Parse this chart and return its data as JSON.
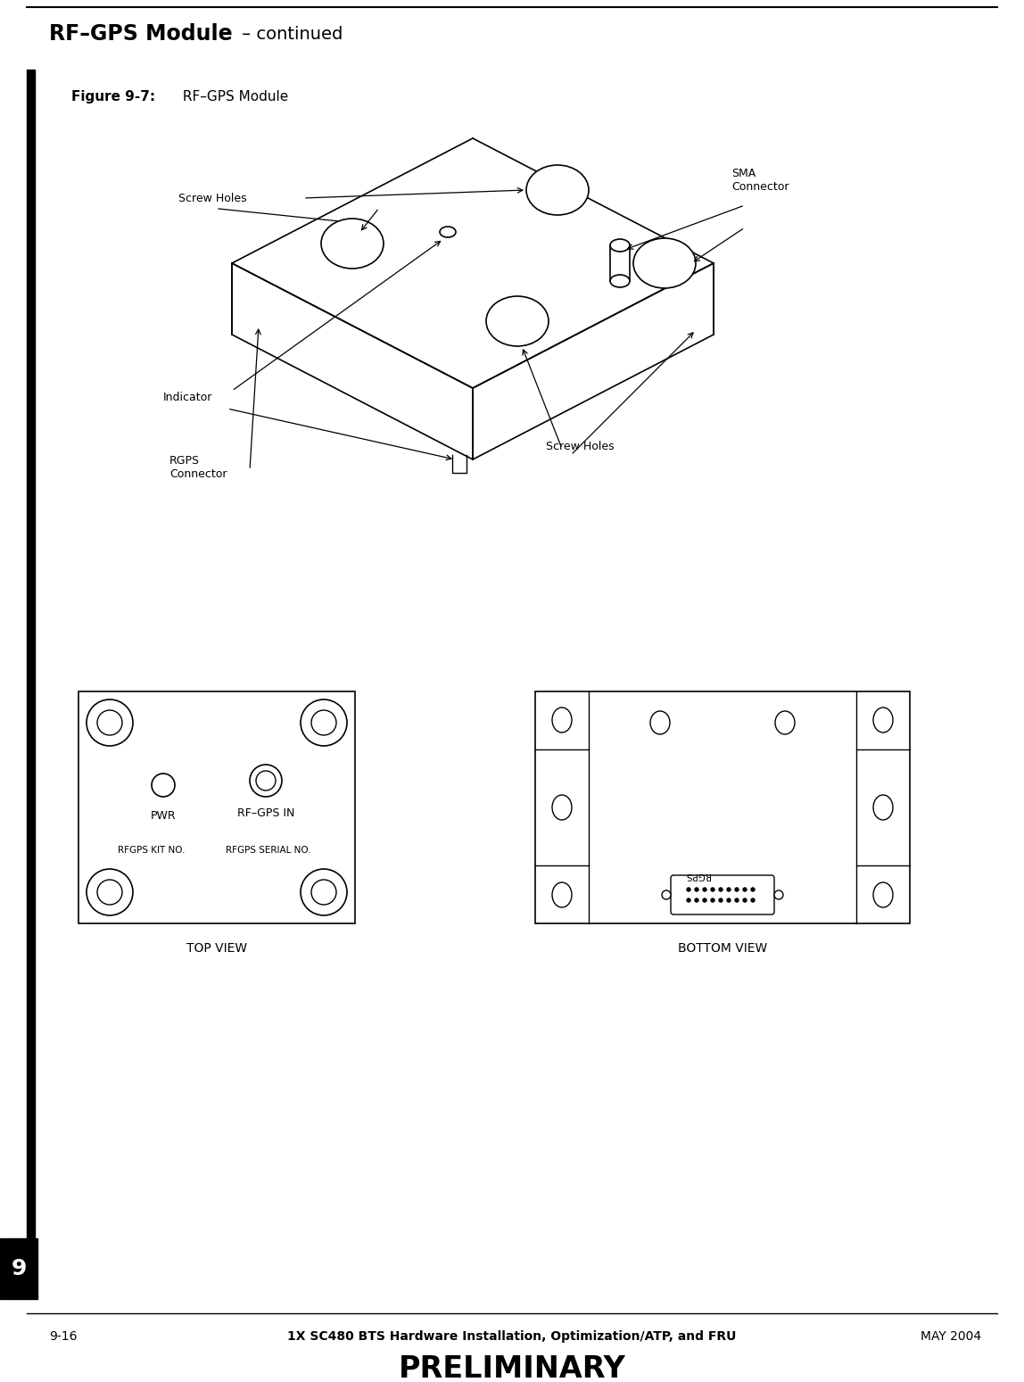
{
  "page_title_bold": "RF–GPS Module",
  "page_title_regular": " – continued",
  "figure_label_bold": "Figure 9-7:",
  "figure_label_regular": " RF–GPS Module",
  "footer_left": "9-16",
  "footer_center": "1X SC480 BTS Hardware Installation, Optimization/ATP, and FRU",
  "footer_right": "MAY 2004",
  "footer_prelim": "PRELIMINARY",
  "page_number": "9",
  "bg_color": "#ffffff",
  "line_color": "#000000",
  "label_screw_holes_top": "Screw Holes",
  "label_sma": "SMA\nConnector",
  "label_indicator": "Indicator",
  "label_rgps": "RGPS\nConnector",
  "label_screw_holes_bottom": "Screw Holes",
  "label_top_view": "TOP VIEW",
  "label_bottom_view": "BOTTOM VIEW",
  "label_pwr": "PWR",
  "label_rfgps_in": "RF–GPS IN",
  "label_rfgps_kit": "RFGPS KIT NO.",
  "label_rfgps_serial": "RFGPS SERIAL NO."
}
